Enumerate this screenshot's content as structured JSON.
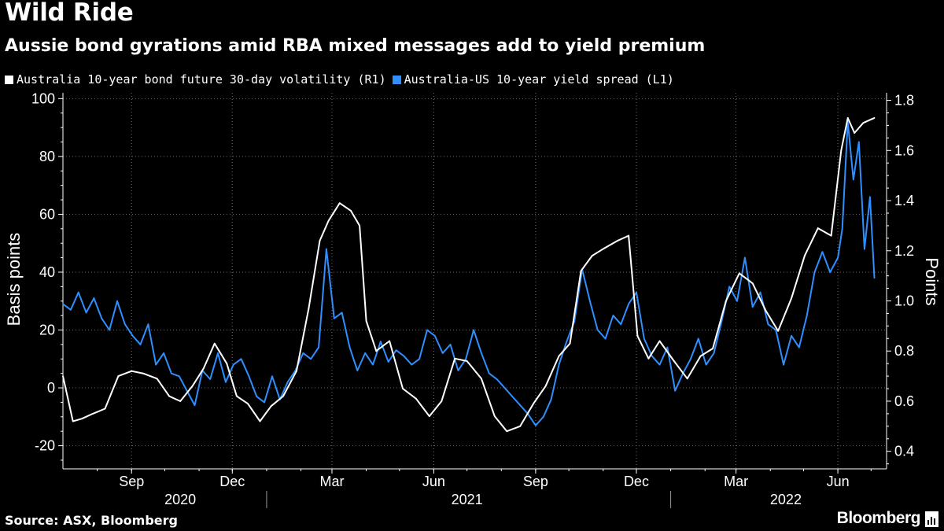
{
  "title": "Wild Ride",
  "subtitle": "Aussie bond gyrations amid RBA mixed messages add to yield premium",
  "legend": [
    {
      "label": "Australia 10-year bond future 30-day volatility (R1)",
      "color": "#ffffff"
    },
    {
      "label": "Australia-US 10-year yield spread  (L1)",
      "color": "#2f8fff"
    }
  ],
  "source": "Source: ASX, Bloomberg",
  "brand": "Bloomberg",
  "chart_data": {
    "type": "line",
    "title": "Wild Ride",
    "left_axis": {
      "label": "Basis points",
      "ticks": [
        "-20",
        "0",
        "20",
        "40",
        "60",
        "80",
        "100"
      ],
      "range": [
        -28,
        102
      ]
    },
    "right_axis": {
      "label": "Points",
      "ticks": [
        "0.4",
        "0.6",
        "0.8",
        "1.0",
        "1.2",
        "1.4",
        "1.6",
        "1.8"
      ],
      "range": [
        0.33,
        1.83
      ]
    },
    "x_range": [
      "2020-07-01",
      "2022-07-15"
    ],
    "month_labels": [
      "Sep",
      "Dec",
      "Mar",
      "Jun",
      "Sep",
      "Dec",
      "Mar",
      "Jun"
    ],
    "month_dates": [
      "2020-09-01",
      "2020-12-01",
      "2021-03-01",
      "2021-06-01",
      "2021-09-01",
      "2021-12-01",
      "2022-03-01",
      "2022-06-01"
    ],
    "year_labels": [
      "2020",
      "2021",
      "2022"
    ],
    "year_positions": [
      "2020-10-15",
      "2021-07-01",
      "2022-04-15"
    ],
    "year_dividers": [
      "2021-01-01",
      "2022-01-01"
    ],
    "series": [
      {
        "name": "Australia-US 10-year yield spread  (L1)",
        "axis": "left",
        "color": "#2f8fff",
        "x": [
          "2020-07-01",
          "2020-07-08",
          "2020-07-15",
          "2020-07-22",
          "2020-07-29",
          "2020-08-05",
          "2020-08-12",
          "2020-08-19",
          "2020-08-26",
          "2020-09-02",
          "2020-09-09",
          "2020-09-16",
          "2020-09-23",
          "2020-09-30",
          "2020-10-07",
          "2020-10-14",
          "2020-10-21",
          "2020-10-28",
          "2020-11-04",
          "2020-11-11",
          "2020-11-18",
          "2020-11-25",
          "2020-12-02",
          "2020-12-09",
          "2020-12-16",
          "2020-12-23",
          "2020-12-30",
          "2021-01-06",
          "2021-01-13",
          "2021-01-20",
          "2021-01-27",
          "2021-02-03",
          "2021-02-10",
          "2021-02-17",
          "2021-02-24",
          "2021-03-03",
          "2021-03-10",
          "2021-03-17",
          "2021-03-24",
          "2021-03-31",
          "2021-04-07",
          "2021-04-14",
          "2021-04-21",
          "2021-04-28",
          "2021-05-05",
          "2021-05-12",
          "2021-05-19",
          "2021-05-26",
          "2021-06-02",
          "2021-06-09",
          "2021-06-16",
          "2021-06-23",
          "2021-06-30",
          "2021-07-07",
          "2021-07-14",
          "2021-07-21",
          "2021-07-28",
          "2021-08-04",
          "2021-08-11",
          "2021-08-18",
          "2021-08-25",
          "2021-09-01",
          "2021-09-08",
          "2021-09-15",
          "2021-09-22",
          "2021-09-29",
          "2021-10-06",
          "2021-10-13",
          "2021-10-20",
          "2021-10-27",
          "2021-11-03",
          "2021-11-10",
          "2021-11-17",
          "2021-11-24",
          "2021-12-01",
          "2021-12-08",
          "2021-12-15",
          "2021-12-22",
          "2021-12-29",
          "2022-01-05",
          "2022-01-12",
          "2022-01-19",
          "2022-01-26",
          "2022-02-02",
          "2022-02-09",
          "2022-02-16",
          "2022-02-23",
          "2022-03-02",
          "2022-03-09",
          "2022-03-16",
          "2022-03-23",
          "2022-03-30",
          "2022-04-06",
          "2022-04-13",
          "2022-04-20",
          "2022-04-27",
          "2022-05-04",
          "2022-05-11",
          "2022-05-18",
          "2022-05-25",
          "2022-06-01",
          "2022-06-05",
          "2022-06-10",
          "2022-06-15",
          "2022-06-20",
          "2022-06-25",
          "2022-06-30",
          "2022-07-04"
        ],
        "values": [
          29,
          27,
          33,
          26,
          31,
          24,
          20,
          30,
          22,
          18,
          15,
          22,
          8,
          12,
          5,
          4,
          -1,
          -6,
          6,
          3,
          12,
          2,
          8,
          10,
          4,
          -3,
          -5,
          4,
          -4,
          2,
          6,
          12,
          10,
          14,
          48,
          24,
          26,
          14,
          6,
          12,
          8,
          16,
          9,
          13,
          11,
          8,
          10,
          20,
          18,
          12,
          15,
          6,
          10,
          20,
          12,
          5,
          3,
          0,
          -3,
          -6,
          -9,
          -13,
          -10,
          -4,
          8,
          16,
          23,
          41,
          30,
          20,
          17,
          25,
          22,
          29,
          33,
          17,
          11,
          8,
          14,
          -1,
          5,
          10,
          17,
          8,
          12,
          23,
          35,
          30,
          45,
          28,
          33,
          22,
          20,
          8,
          18,
          14,
          25,
          40,
          47,
          40,
          45,
          55,
          92,
          72,
          85,
          48,
          66,
          38
        ]
      },
      {
        "name": "Australia 10-year bond future 30-day volatility (R1)",
        "axis": "right",
        "color": "#ffffff",
        "x": [
          "2020-07-01",
          "2020-07-10",
          "2020-07-18",
          "2020-07-28",
          "2020-08-08",
          "2020-08-20",
          "2020-09-01",
          "2020-09-12",
          "2020-09-24",
          "2020-10-05",
          "2020-10-15",
          "2020-10-26",
          "2020-11-05",
          "2020-11-15",
          "2020-11-26",
          "2020-12-05",
          "2020-12-15",
          "2020-12-26",
          "2021-01-05",
          "2021-01-16",
          "2021-01-28",
          "2021-02-08",
          "2021-02-18",
          "2021-02-26",
          "2021-03-08",
          "2021-03-18",
          "2021-03-26",
          "2021-04-01",
          "2021-04-10",
          "2021-04-22",
          "2021-05-04",
          "2021-05-16",
          "2021-05-28",
          "2021-06-08",
          "2021-06-20",
          "2021-07-01",
          "2021-07-14",
          "2021-07-26",
          "2021-08-06",
          "2021-08-18",
          "2021-08-30",
          "2021-09-10",
          "2021-09-22",
          "2021-10-02",
          "2021-10-12",
          "2021-10-22",
          "2021-11-02",
          "2021-11-14",
          "2021-11-24",
          "2021-12-02",
          "2021-12-12",
          "2021-12-22",
          "2022-01-04",
          "2022-01-16",
          "2022-01-28",
          "2022-02-08",
          "2022-02-20",
          "2022-03-04",
          "2022-03-16",
          "2022-03-28",
          "2022-04-08",
          "2022-04-20",
          "2022-05-02",
          "2022-05-14",
          "2022-05-26",
          "2022-06-04",
          "2022-06-10",
          "2022-06-16",
          "2022-06-24",
          "2022-07-04"
        ],
        "values": [
          0.7,
          0.52,
          0.53,
          0.55,
          0.57,
          0.7,
          0.72,
          0.71,
          0.69,
          0.62,
          0.6,
          0.66,
          0.73,
          0.83,
          0.75,
          0.62,
          0.59,
          0.52,
          0.58,
          0.62,
          0.72,
          0.97,
          1.24,
          1.32,
          1.39,
          1.36,
          1.3,
          0.92,
          0.8,
          0.84,
          0.65,
          0.61,
          0.54,
          0.6,
          0.77,
          0.76,
          0.69,
          0.54,
          0.48,
          0.5,
          0.59,
          0.66,
          0.78,
          0.83,
          1.12,
          1.18,
          1.21,
          1.24,
          1.26,
          0.86,
          0.77,
          0.84,
          0.76,
          0.69,
          0.78,
          0.81,
          1.0,
          1.11,
          1.07,
          0.96,
          0.88,
          1.01,
          1.18,
          1.29,
          1.26,
          1.6,
          1.73,
          1.67,
          1.71,
          1.73
        ]
      }
    ]
  }
}
